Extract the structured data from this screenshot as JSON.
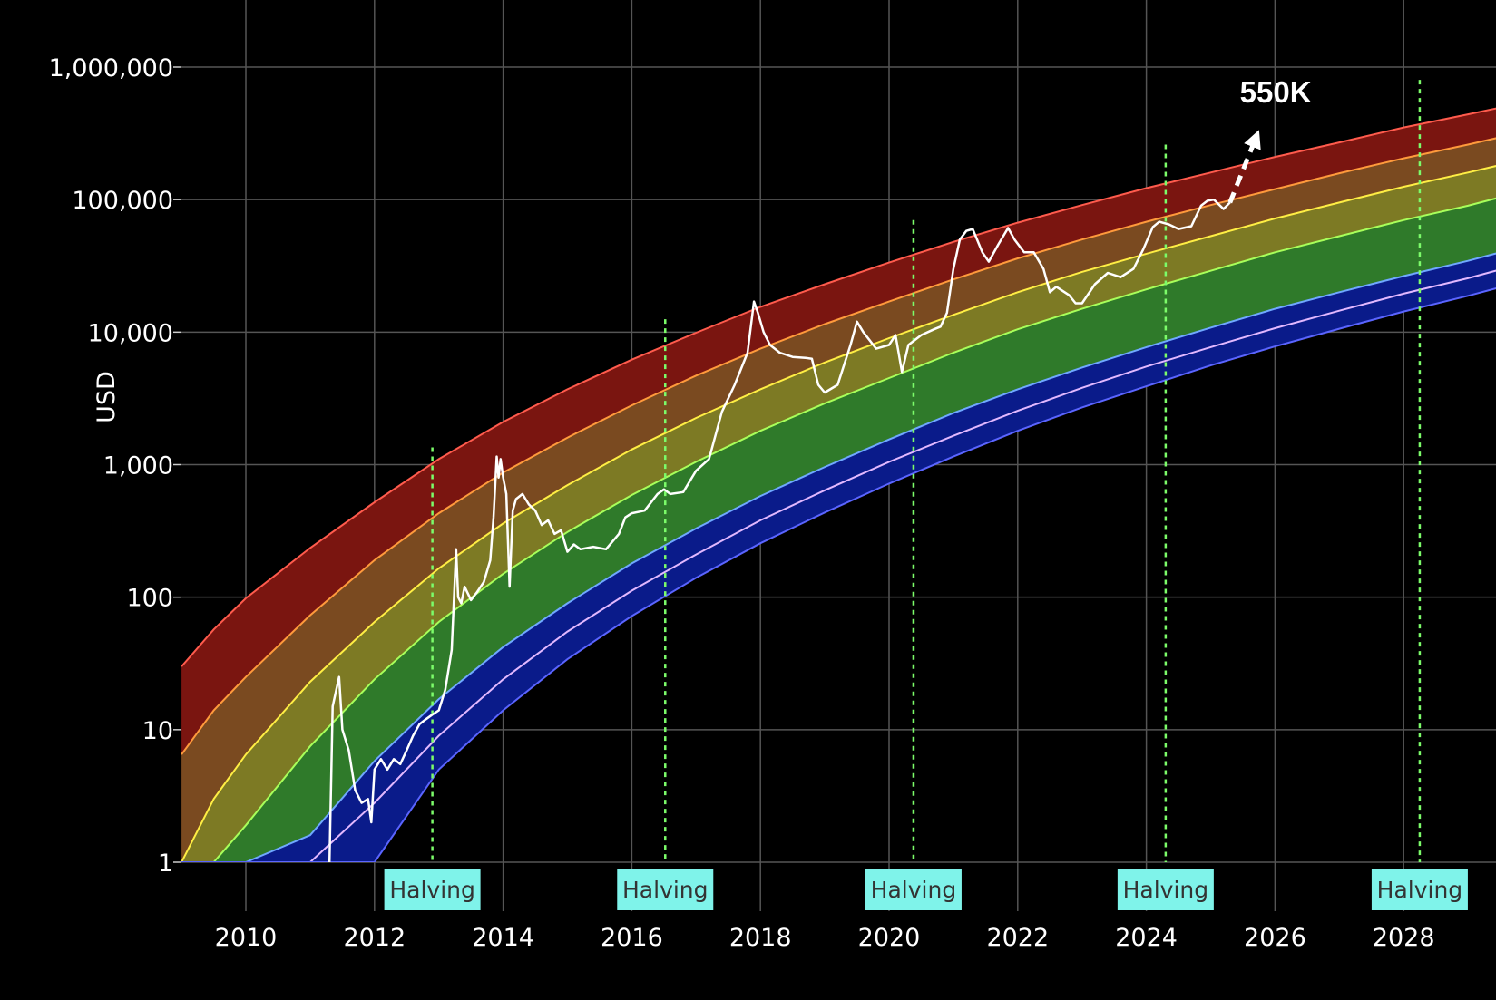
{
  "chart_data": {
    "type": "area",
    "title": "",
    "xlabel": "",
    "ylabel": "USD",
    "y_scale": "log",
    "xlim": [
      2009.0,
      2029.75
    ],
    "ylim": [
      1,
      1000000
    ],
    "x_ticks": [
      "2010",
      "2012",
      "2014",
      "2016",
      "2018",
      "2020",
      "2022",
      "2024",
      "2026",
      "2028"
    ],
    "y_ticks": [
      "1",
      "10",
      "100",
      "1,000",
      "10,000",
      "100,000",
      "1,000,000"
    ],
    "grid": true,
    "colors": {
      "background": "#000000",
      "grid": "#555555",
      "price_line": "#ffffff",
      "halving_line": "#7CFC6A",
      "halving_label_bg": "#7FF3EA",
      "band_boundaries": [
        "#ff5b4d",
        "#ff9a3c",
        "#ffee44",
        "#a8ff5a",
        "#6fa8ff",
        "#e2b8ff",
        "#5a64ff"
      ],
      "band_fills": [
        "#7a1510",
        "#7a4a20",
        "#7d7a24",
        "#2f7a2a",
        "#0a1b8a",
        "#0a1b8a"
      ]
    },
    "bands": {
      "x": [
        2009.0,
        2009.5,
        2010,
        2011,
        2012,
        2013,
        2014,
        2015,
        2016,
        2017,
        2018,
        2019,
        2020,
        2021,
        2022,
        2023,
        2024,
        2025,
        2026,
        2027,
        2028,
        2029,
        2029.75
      ],
      "boundaries": [
        [
          30,
          57,
          98,
          235,
          520,
          1100,
          2100,
          3700,
          6200,
          9900,
          15500,
          23000,
          33500,
          48000,
          67000,
          91000,
          122000,
          160000,
          210000,
          270000,
          350000,
          440000,
          525000
        ],
        [
          6.5,
          14,
          25,
          73,
          190,
          430,
          870,
          1600,
          2800,
          4700,
          7500,
          11500,
          17000,
          25000,
          36000,
          50000,
          68000,
          91000,
          120000,
          158000,
          205000,
          260000,
          315000
        ],
        [
          1,
          3,
          6.5,
          23,
          65,
          165,
          360,
          700,
          1300,
          2250,
          3700,
          5900,
          9000,
          13500,
          20000,
          28500,
          39000,
          53000,
          72000,
          95000,
          125000,
          160000,
          195000
        ],
        [
          1,
          1,
          1.9,
          7.5,
          24,
          65,
          150,
          310,
          590,
          1050,
          1800,
          2900,
          4500,
          7000,
          10500,
          15000,
          21000,
          29000,
          40000,
          53000,
          70000,
          90000,
          112000
        ],
        [
          1,
          1,
          1,
          1.6,
          5.8,
          17,
          42,
          90,
          180,
          330,
          580,
          960,
          1550,
          2450,
          3700,
          5400,
          7700,
          10800,
          15000,
          20000,
          26500,
          34500,
          43000
        ],
        [
          1,
          1,
          1,
          1,
          2.8,
          9,
          24,
          55,
          112,
          210,
          380,
          640,
          1050,
          1650,
          2550,
          3800,
          5500,
          7700,
          10700,
          14500,
          19500,
          25500,
          32000
        ],
        [
          1,
          1,
          1,
          1,
          1,
          5,
          14,
          34,
          72,
          140,
          255,
          435,
          720,
          1150,
          1800,
          2700,
          3900,
          5600,
          7800,
          10600,
          14300,
          18800,
          23500
        ]
      ]
    },
    "price_series": {
      "name": "",
      "x": [
        2011.3,
        2011.35,
        2011.45,
        2011.5,
        2011.6,
        2011.7,
        2011.8,
        2011.9,
        2011.95,
        2012.0,
        2012.1,
        2012.2,
        2012.3,
        2012.4,
        2012.5,
        2012.6,
        2012.7,
        2012.8,
        2012.9,
        2013.0,
        2013.1,
        2013.2,
        2013.27,
        2013.3,
        2013.35,
        2013.4,
        2013.5,
        2013.6,
        2013.7,
        2013.8,
        2013.85,
        2013.9,
        2013.93,
        2013.96,
        2014.0,
        2014.05,
        2014.1,
        2014.15,
        2014.2,
        2014.3,
        2014.4,
        2014.5,
        2014.6,
        2014.7,
        2014.8,
        2014.9,
        2015.0,
        2015.1,
        2015.2,
        2015.4,
        2015.6,
        2015.8,
        2015.9,
        2016.0,
        2016.2,
        2016.4,
        2016.5,
        2016.6,
        2016.8,
        2017.0,
        2017.2,
        2017.4,
        2017.6,
        2017.8,
        2017.9,
        2017.96,
        2018.05,
        2018.15,
        2018.3,
        2018.5,
        2018.7,
        2018.8,
        2018.9,
        2019.0,
        2019.2,
        2019.4,
        2019.5,
        2019.6,
        2019.8,
        2020.0,
        2020.1,
        2020.2,
        2020.3,
        2020.5,
        2020.7,
        2020.8,
        2020.9,
        2021.0,
        2021.1,
        2021.2,
        2021.3,
        2021.45,
        2021.55,
        2021.7,
        2021.85,
        2021.95,
        2022.1,
        2022.25,
        2022.4,
        2022.5,
        2022.6,
        2022.8,
        2022.9,
        2023.0,
        2023.2,
        2023.4,
        2023.6,
        2023.8,
        2023.95,
        2024.1,
        2024.2,
        2024.35,
        2024.5,
        2024.7,
        2024.85,
        2024.95,
        2025.05,
        2025.2,
        2025.3
      ],
      "values": [
        1,
        15,
        25,
        10,
        7,
        3.5,
        2.8,
        3,
        2,
        5,
        6,
        5,
        6,
        5.5,
        7,
        9,
        11,
        12,
        13,
        14,
        20,
        40,
        230,
        100,
        90,
        120,
        95,
        110,
        130,
        190,
        400,
        1150,
        800,
        1100,
        800,
        600,
        120,
        450,
        550,
        600,
        500,
        450,
        350,
        380,
        300,
        320,
        220,
        250,
        230,
        240,
        230,
        300,
        400,
        430,
        450,
        600,
        650,
        600,
        620,
        900,
        1100,
        2500,
        4000,
        7000,
        17000,
        14000,
        10000,
        8000,
        7000,
        6500,
        6400,
        6300,
        4000,
        3500,
        4000,
        8000,
        12000,
        10000,
        7500,
        8000,
        9500,
        5000,
        8000,
        9500,
        10500,
        11000,
        14000,
        30000,
        50000,
        58000,
        60000,
        40000,
        34000,
        46000,
        61000,
        50000,
        40000,
        40000,
        30000,
        20000,
        22000,
        19000,
        16500,
        16500,
        23000,
        28000,
        26000,
        30000,
        42000,
        62000,
        68000,
        65000,
        60000,
        63000,
        90000,
        98000,
        100000,
        85000,
        95000
      ]
    },
    "projection": {
      "x": [
        2025.3,
        2025.7
      ],
      "values": [
        95000,
        290000
      ],
      "label": "550K"
    },
    "halvings": [
      {
        "x": 2012.9,
        "label": "Halving",
        "y_top": 1350
      },
      {
        "x": 2016.52,
        "label": "Halving",
        "y_top": 12500
      },
      {
        "x": 2020.38,
        "label": "Halving",
        "y_top": 70000
      },
      {
        "x": 2024.3,
        "label": "Halving",
        "y_top": 260000
      },
      {
        "x": 2028.25,
        "label": "Halving",
        "y_top": 800000
      }
    ]
  }
}
